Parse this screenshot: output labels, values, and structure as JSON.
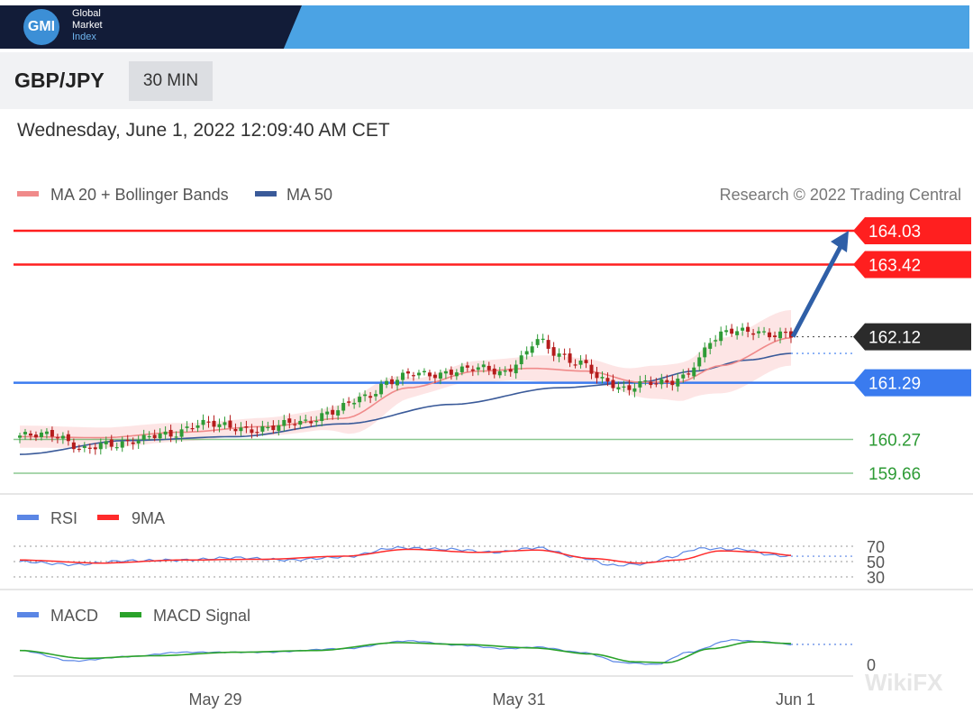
{
  "header": {
    "logo": {
      "mark": "GMI",
      "line1": "Global",
      "line2": "Market",
      "line3": "Index"
    },
    "symbol": "GBP/JPY",
    "interval": "30 MIN",
    "datetime": "Wednesday, June 1, 2022 12:09:40 AM CET"
  },
  "colors": {
    "banner_dark": "#121c38",
    "banner_blue": "#4ba3e4",
    "resistance": "#ff1f1f",
    "pivot": "#3a7bef",
    "support": "#2e9b36",
    "ma20": "#f08a8a",
    "ma50": "#3a5a99",
    "bollinger_fill": "#fde0e0",
    "candle_up": "#2e9b36",
    "candle_down": "#b51c1c",
    "rsi": "#5b86e5",
    "rsi_ma": "#ff2b2b",
    "macd": "#5b86e5",
    "macd_signal": "#2aa22a"
  },
  "chart_data": [
    {
      "type": "candlestick",
      "panel": "price",
      "legend": [
        {
          "name": "MA 20 + Bollinger Bands",
          "color": "#f08a8a"
        },
        {
          "name": "MA 50",
          "color": "#3a5a99"
        }
      ],
      "credit": "Research © 2022 Trading Central",
      "legend_position": "top-left",
      "x_ticks": [
        "May 29",
        "May 31",
        "Jun 1"
      ],
      "ylim": [
        159.45,
        164.35
      ],
      "levels": [
        {
          "value": 164.03,
          "label": "164.03",
          "role": "target",
          "color": "#ff1f1f"
        },
        {
          "value": 163.42,
          "label": "163.42",
          "role": "target",
          "color": "#ff1f1f"
        },
        {
          "value": 162.12,
          "label": "162.12",
          "role": "last",
          "color": "#333333"
        },
        {
          "value": 161.29,
          "label": "161.29",
          "role": "pivot",
          "color": "#3a7bef"
        },
        {
          "value": 160.27,
          "label": "160.27",
          "role": "support",
          "color": "#2e9b36"
        },
        {
          "value": 159.66,
          "label": "159.66",
          "role": "support",
          "color": "#2e9b36"
        }
      ],
      "close_anchors": [
        [
          0,
          160.3
        ],
        [
          6,
          160.4
        ],
        [
          12,
          160.05
        ],
        [
          16,
          160.2
        ],
        [
          22,
          160.25
        ],
        [
          27,
          160.35
        ],
        [
          33,
          160.55
        ],
        [
          38,
          160.5
        ],
        [
          46,
          160.45
        ],
        [
          52,
          160.6
        ],
        [
          58,
          160.75
        ],
        [
          64,
          161.05
        ],
        [
          68,
          161.3
        ],
        [
          74,
          161.45
        ],
        [
          82,
          161.5
        ],
        [
          86,
          161.55
        ],
        [
          90,
          161.5
        ],
        [
          93,
          161.72
        ],
        [
          96,
          162.05
        ],
        [
          99,
          161.85
        ],
        [
          104,
          161.65
        ],
        [
          108,
          161.3
        ],
        [
          112,
          161.2
        ],
        [
          115,
          161.3
        ],
        [
          120,
          161.25
        ],
        [
          123,
          161.4
        ],
        [
          126,
          161.75
        ],
        [
          128,
          162.05
        ],
        [
          132,
          162.2
        ],
        [
          136,
          162.25
        ],
        [
          140,
          162.15
        ],
        [
          143,
          162.12
        ]
      ],
      "ma20_anchors": [
        [
          0,
          160.32
        ],
        [
          15,
          160.3
        ],
        [
          30,
          160.4
        ],
        [
          45,
          160.5
        ],
        [
          60,
          160.65
        ],
        [
          72,
          161.2
        ],
        [
          85,
          161.5
        ],
        [
          95,
          161.55
        ],
        [
          105,
          161.5
        ],
        [
          115,
          161.3
        ],
        [
          122,
          161.3
        ],
        [
          130,
          161.6
        ],
        [
          143,
          162.1
        ]
      ],
      "ma50_anchors": [
        [
          0,
          160.0
        ],
        [
          20,
          160.25
        ],
        [
          40,
          160.32
        ],
        [
          60,
          160.55
        ],
        [
          80,
          160.9
        ],
        [
          100,
          161.2
        ],
        [
          115,
          161.3
        ],
        [
          125,
          161.5
        ],
        [
          135,
          161.7
        ],
        [
          143,
          161.82
        ]
      ],
      "band_halfwidth_anchors": [
        [
          0,
          0.2
        ],
        [
          20,
          0.18
        ],
        [
          40,
          0.15
        ],
        [
          55,
          0.18
        ],
        [
          65,
          0.35
        ],
        [
          75,
          0.15
        ],
        [
          90,
          0.2
        ],
        [
          100,
          0.25
        ],
        [
          110,
          0.2
        ],
        [
          118,
          0.3
        ],
        [
          124,
          0.35
        ],
        [
          130,
          0.5
        ],
        [
          143,
          0.5
        ]
      ],
      "forecast": {
        "from": 162.12,
        "to": 164.03
      },
      "candle_count": 144
    },
    {
      "type": "line",
      "panel": "rsi",
      "legend": [
        {
          "name": "RSI",
          "color": "#5b86e5"
        },
        {
          "name": "9MA",
          "color": "#ff2b2b"
        }
      ],
      "y_ticks": [
        "70",
        "50",
        "30"
      ],
      "ylim": [
        25,
        75
      ],
      "guides": [
        70,
        50,
        30
      ],
      "rsi_anchors": [
        [
          0,
          50
        ],
        [
          10,
          46
        ],
        [
          20,
          51
        ],
        [
          30,
          52
        ],
        [
          40,
          55
        ],
        [
          50,
          52
        ],
        [
          60,
          56
        ],
        [
          70,
          68
        ],
        [
          80,
          66
        ],
        [
          88,
          62
        ],
        [
          96,
          68
        ],
        [
          104,
          55
        ],
        [
          110,
          45
        ],
        [
          116,
          47
        ],
        [
          120,
          55
        ],
        [
          126,
          67
        ],
        [
          134,
          66
        ],
        [
          140,
          58
        ],
        [
          143,
          57
        ]
      ],
      "ma_anchors": [
        [
          0,
          52
        ],
        [
          15,
          48
        ],
        [
          30,
          52
        ],
        [
          45,
          53
        ],
        [
          60,
          57
        ],
        [
          72,
          66
        ],
        [
          85,
          62
        ],
        [
          96,
          65
        ],
        [
          106,
          54
        ],
        [
          115,
          48
        ],
        [
          122,
          52
        ],
        [
          130,
          64
        ],
        [
          138,
          62
        ],
        [
          143,
          58
        ]
      ]
    },
    {
      "type": "line",
      "panel": "macd",
      "legend": [
        {
          "name": "MACD",
          "color": "#5b86e5"
        },
        {
          "name": "MACD Signal",
          "color": "#2aa22a"
        }
      ],
      "y_ticks": [
        "0"
      ],
      "ylim": [
        -0.05,
        0.45
      ],
      "macd_anchors": [
        [
          0,
          0.2
        ],
        [
          10,
          0.08
        ],
        [
          20,
          0.13
        ],
        [
          30,
          0.18
        ],
        [
          45,
          0.18
        ],
        [
          60,
          0.22
        ],
        [
          72,
          0.31
        ],
        [
          82,
          0.26
        ],
        [
          90,
          0.22
        ],
        [
          96,
          0.24
        ],
        [
          104,
          0.18
        ],
        [
          112,
          0.06
        ],
        [
          118,
          0.04
        ],
        [
          124,
          0.18
        ],
        [
          132,
          0.32
        ],
        [
          138,
          0.3
        ],
        [
          143,
          0.27
        ]
      ],
      "signal_anchors": [
        [
          0,
          0.2
        ],
        [
          12,
          0.11
        ],
        [
          25,
          0.14
        ],
        [
          40,
          0.18
        ],
        [
          55,
          0.2
        ],
        [
          70,
          0.29
        ],
        [
          82,
          0.27
        ],
        [
          95,
          0.23
        ],
        [
          106,
          0.16
        ],
        [
          114,
          0.07
        ],
        [
          120,
          0.06
        ],
        [
          128,
          0.22
        ],
        [
          136,
          0.3
        ],
        [
          143,
          0.28
        ]
      ]
    }
  ],
  "watermark": "WikiFX"
}
